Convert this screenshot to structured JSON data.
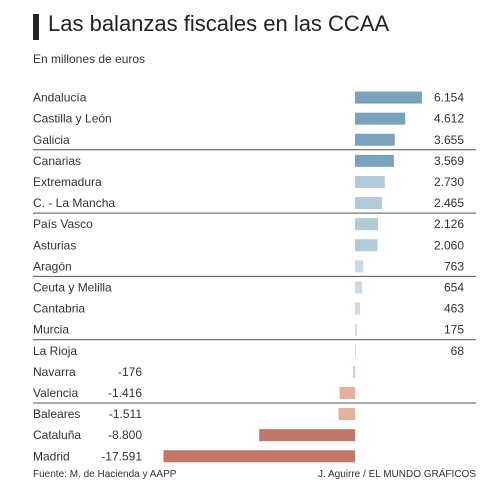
{
  "header": {
    "title": "Las balanzas fiscales en las CCAA",
    "subtitle": "En millones de euros"
  },
  "footer": {
    "source": "Fuente: M. de Hacienda y AAPP",
    "credit": "J. Aguirre / EL MUNDO GRÁFICOS"
  },
  "colors": {
    "positive_dark": "#7aa2bd",
    "positive_mid": "#b3cad9",
    "positive_light": "#cbdae5",
    "negative_light": "#e8c4b4",
    "negative_mid": "#e4b09e",
    "negative_dark": "#c27868",
    "separator": "#555555"
  },
  "chart_data": {
    "type": "bar",
    "orientation": "horizontal",
    "categories": [
      "Andalucía",
      "Castilla y León",
      "Galicia",
      "Canarias",
      "Extremadura",
      "C. - La Mancha",
      "País Vasco",
      "Asturias",
      "Aragón",
      "Ceuta y Melilla",
      "Cantabria",
      "Murcia",
      "La Rioja",
      "Navarra",
      "Valencia",
      "Baleares",
      "Cataluña",
      "Madrid"
    ],
    "values": [
      6154,
      4612,
      3655,
      3569,
      2730,
      2465,
      2126,
      2060,
      763,
      654,
      463,
      175,
      68,
      -176,
      -1416,
      -1511,
      -8800,
      -17591
    ],
    "value_labels": [
      "6.154",
      "4.612",
      "3.655",
      "3.569",
      "2.730",
      "2.465",
      "2.126",
      "2.060",
      "763",
      "654",
      "463",
      "175",
      "68",
      "-176",
      "-1.416",
      "-1.511",
      "-8.800",
      "-17.591"
    ],
    "groups_after_index": [
      2,
      5,
      8,
      11,
      14
    ],
    "unit": "millones de euros",
    "grid": false,
    "legend": "none"
  }
}
